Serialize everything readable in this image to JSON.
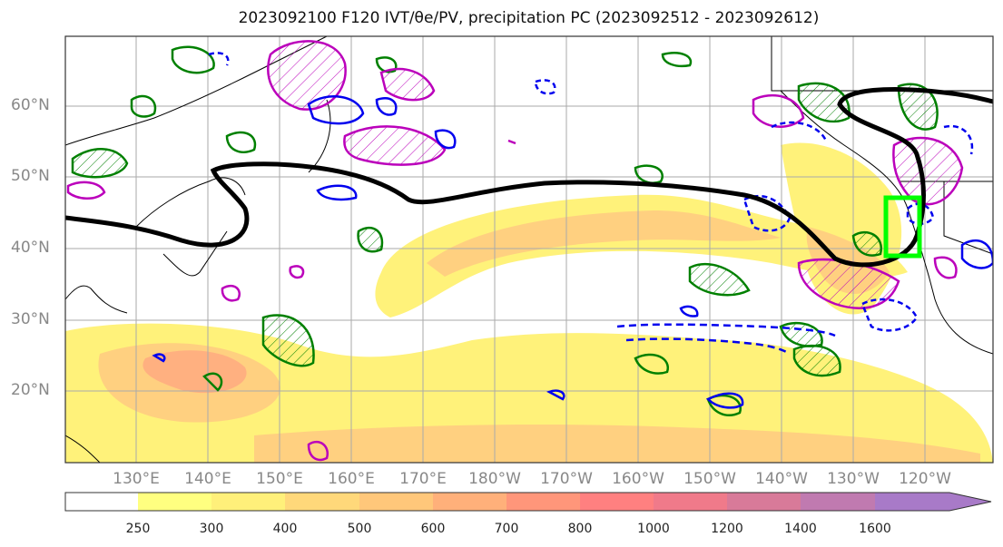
{
  "title": "2023092100 F120 IVT/θe/PV, precipitation PC (2023092512 - 2023092612)",
  "lat_labels": [
    "60°N",
    "50°N",
    "40°N",
    "30°N",
    "20°N"
  ],
  "lon_labels": [
    "130°E",
    "140°E",
    "150°E",
    "160°E",
    "170°E",
    "180°W",
    "170°W",
    "160°W",
    "150°W",
    "140°W",
    "130°W",
    "120°W"
  ],
  "colorbar": {
    "levels": [
      "250",
      "300",
      "400",
      "500",
      "600",
      "700",
      "800",
      "1000",
      "1200",
      "1400",
      "1600"
    ],
    "colors": [
      "#ffff80",
      "#fff07a",
      "#ffd87a",
      "#ffc77a",
      "#ffb07a",
      "#ff967a",
      "#ff8080",
      "#f07a8a",
      "#d87a99",
      "#c07ab0",
      "#a87ac8"
    ]
  },
  "colors": {
    "ivt_low": "#fff27a",
    "ivt_mid": "#ffd080",
    "ivt_high": "#ffb080",
    "theta_e": "#000000",
    "pv_positive": "#0000ee",
    "precip_green": "#008000",
    "precip_magenta": "#bb00bb",
    "highlight_box": "#00ff00"
  }
}
